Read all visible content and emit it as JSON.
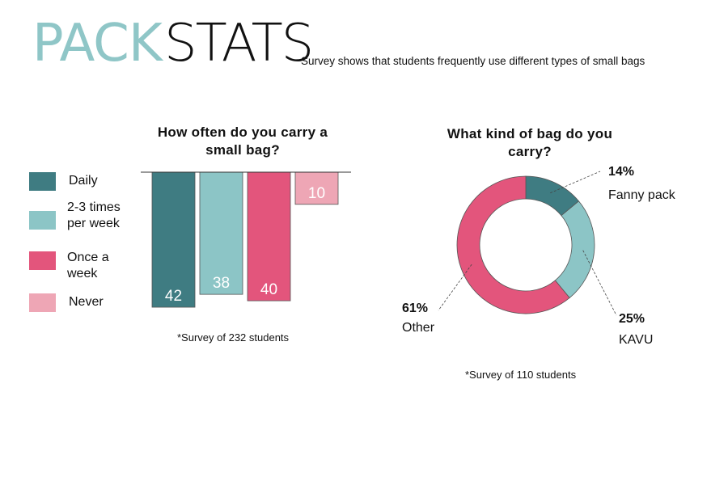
{
  "header": {
    "title_part1": "PACK",
    "title_part2": "STATS",
    "subtitle": "Survey shows that students frequently use different types of small bags"
  },
  "colors": {
    "title_accent": "#8fc6c7",
    "daily": "#3f7c82",
    "two_three": "#8cc5c6",
    "once": "#e3557c",
    "never": "#eea6b5"
  },
  "chart_data": [
    {
      "type": "bar",
      "title": "How often do you carry a small bag?",
      "title_lines": [
        "How often do you carry a",
        "small bag?"
      ],
      "categories": [
        "Daily",
        "2-3 times per week",
        "Once a week",
        "Never"
      ],
      "values": [
        42,
        38,
        40,
        10
      ],
      "data_labels": [
        "42",
        "38",
        "40",
        "10"
      ],
      "legend": [
        {
          "label_lines": [
            "Daily"
          ],
          "color": "#3f7c82"
        },
        {
          "label_lines": [
            "2-3 times",
            "per week"
          ],
          "color": "#8cc5c6"
        },
        {
          "label_lines": [
            "Once a",
            "week"
          ],
          "color": "#e3557c"
        },
        {
          "label_lines": [
            "Never"
          ],
          "color": "#eea6b5"
        }
      ],
      "legend_position": "left",
      "orientation": "downward from baseline",
      "ylim": [
        0,
        44
      ],
      "note": "*Survey of 232 students"
    },
    {
      "type": "pie",
      "variant": "donut",
      "title": "What kind of bag do you carry?",
      "title_lines": [
        "What kind of bag do you",
        "carry?"
      ],
      "slices": [
        {
          "label": "Fanny pack",
          "value": 14,
          "pct_label": "14%",
          "color": "#3f7c82"
        },
        {
          "label": "KAVU",
          "value": 25,
          "pct_label": "25%",
          "color": "#8cc5c6"
        },
        {
          "label": "Other",
          "value": 61,
          "pct_label": "61%",
          "color": "#e3557c"
        }
      ],
      "note": "*Survey of 110 students"
    }
  ]
}
